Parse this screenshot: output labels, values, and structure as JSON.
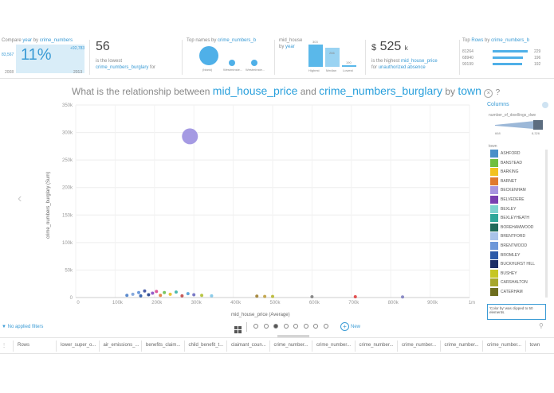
{
  "cards": {
    "c1": {
      "title_a": "Compare",
      "title_b": "year",
      "title_c": "by",
      "title_d": "crime_numbers",
      "value": "11%",
      "left_val": "83,567",
      "right_val": "+92,783",
      "from": "2008",
      "to": "2013"
    },
    "c2": {
      "value": "56",
      "line1": "is the lowest",
      "line2": "crime_numbers_burglary",
      "line3": "for"
    },
    "c3": {
      "title_a": "Top names",
      "title_b": "by",
      "title_c": "crime_numbers_b",
      "b1": "(blank)",
      "b2": "Westminste...",
      "b3": "Westminste..."
    },
    "c4": {
      "title_a": "mid_house",
      "title_b": "price",
      "title_c": "by",
      "title_d": "year",
      "v_high": "303",
      "v_med": "266",
      "v_low": "190",
      "l_high": "Highest",
      "l_med": "Median",
      "l_low": "Lowest"
    },
    "c5": {
      "currency": "$",
      "value": "525",
      "unit": "k",
      "line1": "is the highest",
      "line1b": "mid_house_price",
      "line2": "for",
      "line2b": "unauthorized absence"
    },
    "c6": {
      "title_a": "Top",
      "title_b": "Rows",
      "title_c": "by",
      "title_d": "crime_numbers_b",
      "rows": [
        {
          "id": "81264",
          "val": "229",
          "fill": 1.0
        },
        {
          "id": "68940",
          "val": "196",
          "fill": 0.86
        },
        {
          "id": "90199",
          "val": "192",
          "fill": 0.84
        }
      ]
    }
  },
  "question": {
    "lead": "What is the relationship between",
    "var1": "mid_house_price",
    "and": "and",
    "var2": "crime_numbers_burglary",
    "by": "by",
    "var3": "town",
    "help": "?"
  },
  "chart_data": {
    "type": "scatter",
    "xlabel": "mid_house_price (Average)",
    "ylabel": "crime_numbers_burglary (Sum)",
    "xlim": [
      0,
      1000000
    ],
    "ylim": [
      0,
      350000
    ],
    "xticks": [
      "0",
      "100k",
      "200k",
      "300k",
      "400k",
      "500k",
      "600k",
      "700k",
      "800k",
      "900k",
      "1m"
    ],
    "yticks": [
      "0",
      "50k",
      "100k",
      "150k",
      "200k",
      "250k",
      "300k",
      "350k"
    ],
    "points": [
      {
        "x": 290000,
        "y": 293000,
        "size": 1.0,
        "color": "#9b8fe0"
      },
      {
        "x": 130000,
        "y": 4000,
        "size": 0.12,
        "color": "#4b7fc9"
      },
      {
        "x": 145000,
        "y": 6000,
        "size": 0.14,
        "color": "#7aa0d8"
      },
      {
        "x": 160000,
        "y": 9000,
        "size": 0.14,
        "color": "#5c8ed6"
      },
      {
        "x": 165000,
        "y": 3000,
        "size": 0.12,
        "color": "#2a5aa8"
      },
      {
        "x": 175000,
        "y": 12000,
        "size": 0.15,
        "color": "#3a4fa0"
      },
      {
        "x": 185000,
        "y": 5000,
        "size": 0.14,
        "color": "#1f3f8a"
      },
      {
        "x": 195000,
        "y": 8000,
        "size": 0.13,
        "color": "#8a4ec4"
      },
      {
        "x": 205000,
        "y": 11000,
        "size": 0.13,
        "color": "#d9488f"
      },
      {
        "x": 215000,
        "y": 4000,
        "size": 0.12,
        "color": "#e07b39"
      },
      {
        "x": 225000,
        "y": 9000,
        "size": 0.12,
        "color": "#6cbf4f"
      },
      {
        "x": 240000,
        "y": 6000,
        "size": 0.12,
        "color": "#e3c021"
      },
      {
        "x": 255000,
        "y": 10000,
        "size": 0.12,
        "color": "#39b3a6"
      },
      {
        "x": 270000,
        "y": 3000,
        "size": 0.12,
        "color": "#c04a4a"
      },
      {
        "x": 285000,
        "y": 7000,
        "size": 0.12,
        "color": "#4fa0d8"
      },
      {
        "x": 300000,
        "y": 5000,
        "size": 0.12,
        "color": "#6c6cc0"
      },
      {
        "x": 320000,
        "y": 4000,
        "size": 0.11,
        "color": "#b0c030"
      },
      {
        "x": 345000,
        "y": 3000,
        "size": 0.11,
        "color": "#7fc7e8"
      },
      {
        "x": 460000,
        "y": 2500,
        "size": 0.11,
        "color": "#a08030"
      },
      {
        "x": 480000,
        "y": 2000,
        "size": 0.11,
        "color": "#c0a040"
      },
      {
        "x": 500000,
        "y": 2000,
        "size": 0.11,
        "color": "#b8b830"
      },
      {
        "x": 600000,
        "y": 1500,
        "size": 0.11,
        "color": "#7f7f7f"
      },
      {
        "x": 710000,
        "y": 1500,
        "size": 0.11,
        "color": "#e04040"
      },
      {
        "x": 830000,
        "y": 1000,
        "size": 0.11,
        "color": "#8080c0"
      }
    ]
  },
  "side": {
    "columns_label": "Columns",
    "size_label": "number_of_dwellings_dwe",
    "size_min": "668",
    "size_max": "8,326",
    "town_label": "town",
    "towns": [
      {
        "name": "ASHFORD",
        "color": "#4a90c8"
      },
      {
        "name": "BANSTEAD",
        "color": "#6fbf3f"
      },
      {
        "name": "BARKING",
        "color": "#f2c21e"
      },
      {
        "name": "BARNET",
        "color": "#e07a2e"
      },
      {
        "name": "BECKENHAM",
        "color": "#a895e0"
      },
      {
        "name": "BELVEDERE",
        "color": "#7a3fb0"
      },
      {
        "name": "BEXLEY",
        "color": "#7fd3d0"
      },
      {
        "name": "BEXLEYHEATH",
        "color": "#2fa79a"
      },
      {
        "name": "BOREHAMWOOD",
        "color": "#206a5a"
      },
      {
        "name": "BRENTFORD",
        "color": "#a9c3ea"
      },
      {
        "name": "BRENTWOOD",
        "color": "#6d97d9"
      },
      {
        "name": "BROMLEY",
        "color": "#2c5aa8"
      },
      {
        "name": "BUCKHURST HILL",
        "color": "#1d2f66"
      },
      {
        "name": "BUSHEY",
        "color": "#c6c624"
      },
      {
        "name": "CARSHALTON",
        "color": "#a7a72a"
      },
      {
        "name": "CATERHAM",
        "color": "#6e6e1e"
      }
    ],
    "note": "'Color by' was clipped to 50 elements."
  },
  "bottom": {
    "filters": "No applied filters",
    "new_label": "New",
    "columns": [
      "Rows",
      "lower_super_o...",
      "air_emissions_...",
      "benefits_claim...",
      "child_benefit_t...",
      "claimant_coun...",
      "crime_number...",
      "crime_number...",
      "crime_number...",
      "crime_number...",
      "crime_number...",
      "crime_number...",
      "town"
    ]
  }
}
